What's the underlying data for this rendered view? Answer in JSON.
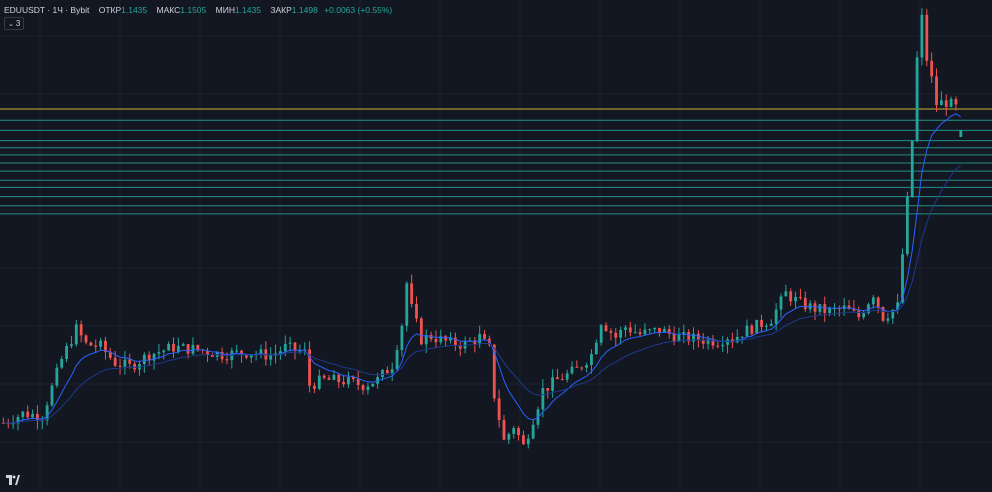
{
  "legend": {
    "symbol": "EDUUSDT · 1Ч · Bybit",
    "open_label": "ОТКР",
    "open": "1.1435",
    "high_label": "МАКС",
    "high": "1.1505",
    "low_label": "МИН",
    "low": "1.1435",
    "close_label": "ЗАКР",
    "close": "1.1498",
    "change": "+0.0063 (+0.55%)"
  },
  "indicators_toggle": {
    "count": "3"
  },
  "colors": {
    "background": "#131722",
    "up": "#26a69a",
    "down": "#ef5350",
    "ma_fast": "#2962ff",
    "ma_slow": "#1e3a8a",
    "level_gold": "#c9b037",
    "level_teal": "#26a69a"
  },
  "logo": "tradingview-logo-icon",
  "chart_data": {
    "type": "candlestick",
    "x_label": "",
    "y_label": "",
    "y_range": [
      0.795,
      1.278
    ],
    "grid": true,
    "indicators": [
      "moving-average-fast",
      "moving-average-slow"
    ],
    "horizontal_levels": [
      {
        "price": 1.171,
        "color": "gold"
      },
      {
        "price": 1.16,
        "color": "teal"
      },
      {
        "price": 1.15,
        "color": "teal"
      },
      {
        "price": 1.14,
        "color": "teal"
      },
      {
        "price": 1.133,
        "color": "teal"
      },
      {
        "price": 1.126,
        "color": "teal"
      },
      {
        "price": 1.118,
        "color": "teal"
      },
      {
        "price": 1.11,
        "color": "teal"
      },
      {
        "price": 1.101,
        "color": "teal"
      },
      {
        "price": 1.094,
        "color": "teal"
      },
      {
        "price": 1.085,
        "color": "teal"
      },
      {
        "price": 1.076,
        "color": "teal"
      },
      {
        "price": 1.068,
        "color": "teal"
      }
    ],
    "anchors": [
      [
        0,
        0.863
      ],
      [
        4,
        0.872
      ],
      [
        8,
        0.87
      ],
      [
        12,
        0.925
      ],
      [
        15,
        0.955
      ],
      [
        17,
        0.94
      ],
      [
        20,
        0.938
      ],
      [
        23,
        0.922
      ],
      [
        26,
        0.918
      ],
      [
        30,
        0.93
      ],
      [
        35,
        0.937
      ],
      [
        40,
        0.935
      ],
      [
        45,
        0.93
      ],
      [
        50,
        0.932
      ],
      [
        55,
        0.929
      ],
      [
        58,
        0.937
      ],
      [
        62,
        0.932
      ],
      [
        63,
        0.9
      ],
      [
        66,
        0.905
      ],
      [
        70,
        0.904
      ],
      [
        74,
        0.9
      ],
      [
        77,
        0.905
      ],
      [
        80,
        0.92
      ],
      [
        82,
        0.96
      ],
      [
        83,
        1.0
      ],
      [
        84,
        0.975
      ],
      [
        86,
        0.945
      ],
      [
        88,
        0.948
      ],
      [
        92,
        0.941
      ],
      [
        95,
        0.94
      ],
      [
        98,
        0.947
      ],
      [
        100,
        0.935
      ],
      [
        101,
        0.89
      ],
      [
        103,
        0.845
      ],
      [
        105,
        0.86
      ],
      [
        107,
        0.84
      ],
      [
        109,
        0.867
      ],
      [
        111,
        0.895
      ],
      [
        114,
        0.905
      ],
      [
        118,
        0.915
      ],
      [
        121,
        0.93
      ],
      [
        123,
        0.963
      ],
      [
        126,
        0.947
      ],
      [
        128,
        0.957
      ],
      [
        131,
        0.95
      ],
      [
        135,
        0.954
      ],
      [
        139,
        0.947
      ],
      [
        143,
        0.945
      ],
      [
        147,
        0.943
      ],
      [
        149,
        0.948
      ],
      [
        150,
        0.945
      ],
      [
        152,
        0.952
      ],
      [
        155,
        0.958
      ],
      [
        158,
        0.965
      ],
      [
        161,
        0.99
      ],
      [
        164,
        0.98
      ],
      [
        167,
        0.975
      ],
      [
        170,
        0.972
      ],
      [
        173,
        0.975
      ],
      [
        176,
        0.967
      ],
      [
        179,
        0.99
      ],
      [
        181,
        0.967
      ],
      [
        184,
        0.977
      ],
      [
        186,
        1.08
      ],
      [
        187,
        1.14
      ],
      [
        188,
        1.22
      ],
      [
        189,
        1.26
      ],
      [
        190,
        1.22
      ],
      [
        191,
        1.2
      ],
      [
        192,
        1.176
      ],
      [
        194,
        1.178
      ],
      [
        196,
        1.172
      ],
      [
        197,
        1.175
      ]
    ],
    "last_bar": {
      "open": 1.1435,
      "high": 1.1505,
      "low": 1.1435,
      "close": 1.1498
    }
  }
}
